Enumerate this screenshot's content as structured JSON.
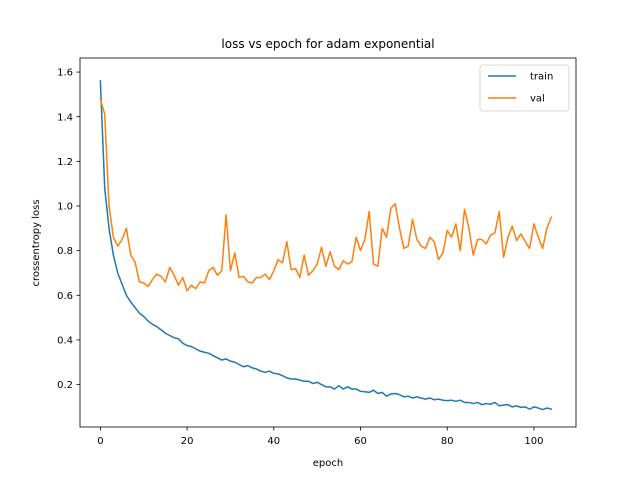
{
  "chart_data": {
    "type": "line",
    "title": "loss vs epoch for adam exponential",
    "xlabel": "epoch",
    "ylabel": "crossentropy loss",
    "xlim": [
      -4.7,
      109.7
    ],
    "ylim": [
      0.01,
      1.663
    ],
    "xticks": [
      0,
      20,
      40,
      60,
      80,
      100
    ],
    "yticks": [
      0.2,
      0.4,
      0.6,
      0.8,
      1.0,
      1.2,
      1.4,
      1.6
    ],
    "xtick_labels": [
      "0",
      "20",
      "40",
      "60",
      "80",
      "100"
    ],
    "ytick_labels": [
      "0.2",
      "0.4",
      "0.6",
      "0.8",
      "1.0",
      "1.2",
      "1.4",
      "1.6"
    ],
    "grid": false,
    "legend_position": "top-right",
    "x": [
      0,
      1,
      2,
      3,
      4,
      5,
      6,
      7,
      8,
      9,
      10,
      11,
      12,
      13,
      14,
      15,
      16,
      17,
      18,
      19,
      20,
      21,
      22,
      23,
      24,
      25,
      26,
      27,
      28,
      29,
      30,
      31,
      32,
      33,
      34,
      35,
      36,
      37,
      38,
      39,
      40,
      41,
      42,
      43,
      44,
      45,
      46,
      47,
      48,
      49,
      50,
      51,
      52,
      53,
      54,
      55,
      56,
      57,
      58,
      59,
      60,
      61,
      62,
      63,
      64,
      65,
      66,
      67,
      68,
      69,
      70,
      71,
      72,
      73,
      74,
      75,
      76,
      77,
      78,
      79,
      80,
      81,
      82,
      83,
      84,
      85,
      86,
      87,
      88,
      89,
      90,
      91,
      92,
      93,
      94,
      95,
      96,
      97,
      98,
      99,
      100,
      101,
      102,
      103,
      104
    ],
    "series": [
      {
        "name": "train",
        "color": "#1f77b4",
        "values": [
          1.56,
          1.08,
          0.9,
          0.78,
          0.7,
          0.65,
          0.6,
          0.57,
          0.545,
          0.52,
          0.505,
          0.485,
          0.47,
          0.46,
          0.445,
          0.43,
          0.42,
          0.41,
          0.405,
          0.385,
          0.375,
          0.37,
          0.36,
          0.35,
          0.345,
          0.34,
          0.33,
          0.32,
          0.31,
          0.315,
          0.305,
          0.3,
          0.29,
          0.28,
          0.285,
          0.275,
          0.27,
          0.26,
          0.255,
          0.26,
          0.25,
          0.248,
          0.24,
          0.23,
          0.225,
          0.225,
          0.22,
          0.215,
          0.215,
          0.205,
          0.21,
          0.2,
          0.19,
          0.19,
          0.18,
          0.195,
          0.18,
          0.19,
          0.18,
          0.18,
          0.17,
          0.168,
          0.165,
          0.175,
          0.16,
          0.165,
          0.148,
          0.158,
          0.16,
          0.155,
          0.145,
          0.148,
          0.14,
          0.145,
          0.14,
          0.135,
          0.14,
          0.132,
          0.135,
          0.13,
          0.128,
          0.13,
          0.125,
          0.13,
          0.12,
          0.12,
          0.115,
          0.12,
          0.11,
          0.115,
          0.112,
          0.12,
          0.105,
          0.108,
          0.11,
          0.1,
          0.105,
          0.098,
          0.1,
          0.09,
          0.1,
          0.095,
          0.088,
          0.095,
          0.09
        ]
      },
      {
        "name": "val",
        "color": "#ff7f0e",
        "values": [
          1.48,
          1.41,
          1.0,
          0.86,
          0.82,
          0.85,
          0.9,
          0.78,
          0.75,
          0.66,
          0.655,
          0.64,
          0.67,
          0.695,
          0.685,
          0.66,
          0.725,
          0.69,
          0.645,
          0.68,
          0.62,
          0.645,
          0.63,
          0.66,
          0.655,
          0.71,
          0.725,
          0.69,
          0.71,
          0.96,
          0.71,
          0.79,
          0.68,
          0.685,
          0.66,
          0.655,
          0.68,
          0.68,
          0.695,
          0.67,
          0.71,
          0.76,
          0.745,
          0.84,
          0.715,
          0.72,
          0.68,
          0.78,
          0.69,
          0.71,
          0.74,
          0.815,
          0.73,
          0.795,
          0.73,
          0.715,
          0.755,
          0.74,
          0.75,
          0.86,
          0.8,
          0.85,
          0.975,
          0.74,
          0.73,
          0.9,
          0.86,
          0.99,
          1.01,
          0.9,
          0.81,
          0.82,
          0.94,
          0.85,
          0.82,
          0.81,
          0.86,
          0.84,
          0.76,
          0.79,
          0.89,
          0.86,
          0.92,
          0.8,
          0.985,
          0.9,
          0.78,
          0.85,
          0.85,
          0.83,
          0.87,
          0.88,
          0.975,
          0.77,
          0.86,
          0.91,
          0.845,
          0.875,
          0.84,
          0.81,
          0.92,
          0.86,
          0.81,
          0.9,
          0.95
        ]
      }
    ]
  }
}
